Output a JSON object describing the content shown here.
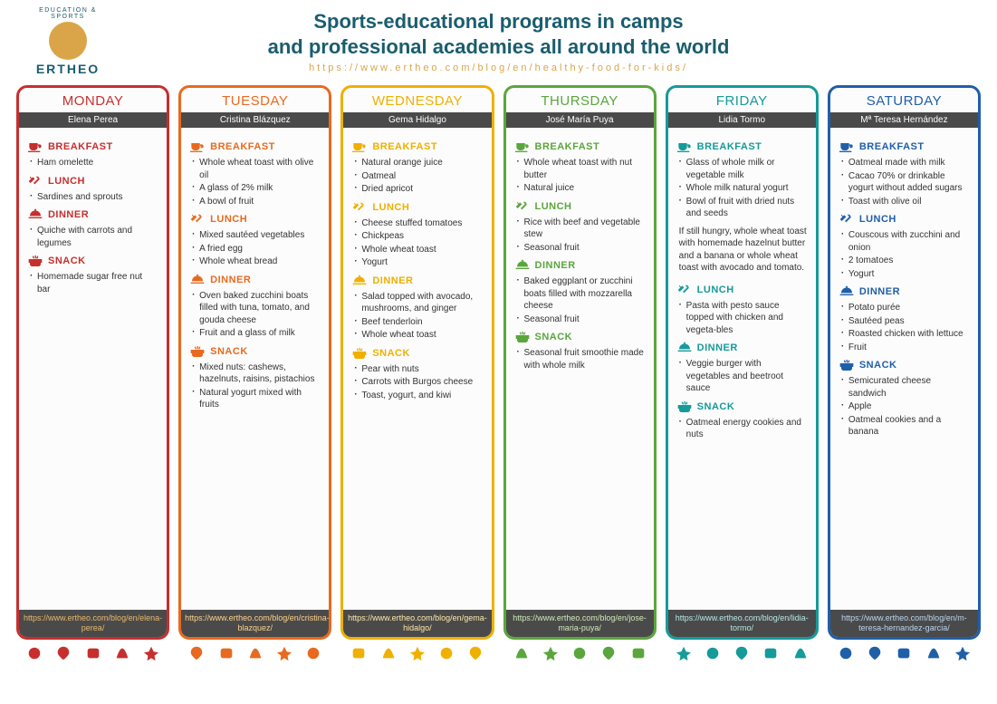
{
  "logo": {
    "arc_text": "EDUCATION & SPORTS",
    "name": "ERTHEO",
    "circle_color": "#d9a548",
    "text_color": "#1a5d6e"
  },
  "header": {
    "title_line1": "Sports-educational programs in camps",
    "title_line2": "and professional academies all around the world",
    "url": "https://www.ertheo.com/blog/en/healthy-food-for-kids/",
    "title_color": "#1a5d6e",
    "url_color": "#d9a548"
  },
  "meal_labels": {
    "breakfast": "BREAKFAST",
    "lunch": "LUNCH",
    "dinner": "DINNER",
    "snack": "SNACK"
  },
  "author_bar_bg": "#4a4a4a",
  "days": [
    {
      "name": "MONDAY",
      "author": "Elena Perea",
      "color": "#c72f2f",
      "link_color": "#e8b96a",
      "breakfast": [
        "Ham omelette"
      ],
      "lunch": [
        "Sardines and sprouts"
      ],
      "dinner": [
        "Quiche with carrots and legumes"
      ],
      "snack": [
        "Homemade sugar free nut bar"
      ],
      "footer": "https://www.ertheo.com/blog/en/elena-perea/"
    },
    {
      "name": "TUESDAY",
      "author": "Cristina Blázquez",
      "color": "#e86a1f",
      "link_color": "#ffd28a",
      "breakfast": [
        "Whole wheat toast with olive oil",
        "A glass of 2% milk",
        "A bowl of fruit"
      ],
      "lunch": [
        "Mixed sautéed vegetables",
        "A fried egg",
        "Whole wheat bread"
      ],
      "dinner": [
        "Oven baked zucchini boats filled with tuna, tomato, and gouda cheese",
        "Fruit and a glass of milk"
      ],
      "snack": [
        "Mixed nuts: cashews, hazelnuts, raisins, pistachios",
        "Natural yogurt mixed with fruits"
      ],
      "footer": "https://www.ertheo.com/blog/en/cristina-blazquez/"
    },
    {
      "name": "WEDNESDAY",
      "author": "Gema Hidalgo",
      "color": "#efb000",
      "link_color": "#ffe9a8",
      "breakfast": [
        "Natural orange juice",
        "Oatmeal",
        "Dried apricot"
      ],
      "lunch": [
        "Cheese stuffed tomatoes",
        "Chickpeas",
        "Whole wheat toast",
        "Yogurt"
      ],
      "dinner": [
        "Salad topped with avocado, mushrooms, and ginger",
        "Beef tenderloin",
        "Whole wheat toast"
      ],
      "snack": [
        "Pear with nuts",
        "Carrots with Burgos cheese",
        "Toast, yogurt, and kiwi"
      ],
      "footer": "https://www.ertheo.com/blog/en/gema-hidalgo/"
    },
    {
      "name": "THURSDAY",
      "author": "José María Puya",
      "color": "#5aa63d",
      "link_color": "#cfe9b8",
      "breakfast": [
        "Whole wheat toast with nut butter",
        "Natural juice"
      ],
      "lunch": [
        "Rice with beef and vegetable stew",
        "Seasonal fruit"
      ],
      "dinner": [
        "Baked eggplant or zucchini boats filled with mozzarella cheese",
        "Seasonal fruit"
      ],
      "snack": [
        "Seasonal fruit smoothie made with whole milk"
      ],
      "footer": "https://www.ertheo.com/blog/en/jose-maria-puya/"
    },
    {
      "name": "FRIDAY",
      "author": "Lidia Tormo",
      "color": "#169a9a",
      "link_color": "#b6e5e5",
      "breakfast": [
        "Glass of whole milk or vegetable milk",
        "Whole milk natural yogurt",
        "Bowl of fruit with dried nuts and seeds"
      ],
      "breakfast_note": "If still hungry, whole wheat toast with homemade hazelnut butter and a banana or whole wheat toast with avocado and tomato.",
      "lunch": [
        "Pasta with pesto sauce topped with chicken and vegeta-bles"
      ],
      "dinner": [
        "Veggie burger with vegetables and beetroot sauce"
      ],
      "snack": [
        "Oatmeal energy cookies and nuts"
      ],
      "footer": "https://www.ertheo.com/blog/en/lidia-tormo/"
    },
    {
      "name": "SATURDAY",
      "author": "Mª Teresa Hernández",
      "color": "#1f5fa8",
      "link_color": "#b9d4ef",
      "breakfast": [
        "Oatmeal made with milk",
        "Cacao 70% or drinkable yogurt without added sugars",
        "Toast with olive oil"
      ],
      "lunch": [
        "Couscous with zucchini and onion",
        "2 tomatoes",
        "Yogurt"
      ],
      "dinner": [
        "Potato purée",
        "Sautéed peas",
        "Roasted chicken with lettuce",
        "Fruit"
      ],
      "snack": [
        "Semicurated cheese sandwich",
        "Apple",
        "Oatmeal cookies and a banana"
      ],
      "footer": "https://www.ertheo.com/blog/en/m-teresa-hernandez-garcia/"
    }
  ]
}
